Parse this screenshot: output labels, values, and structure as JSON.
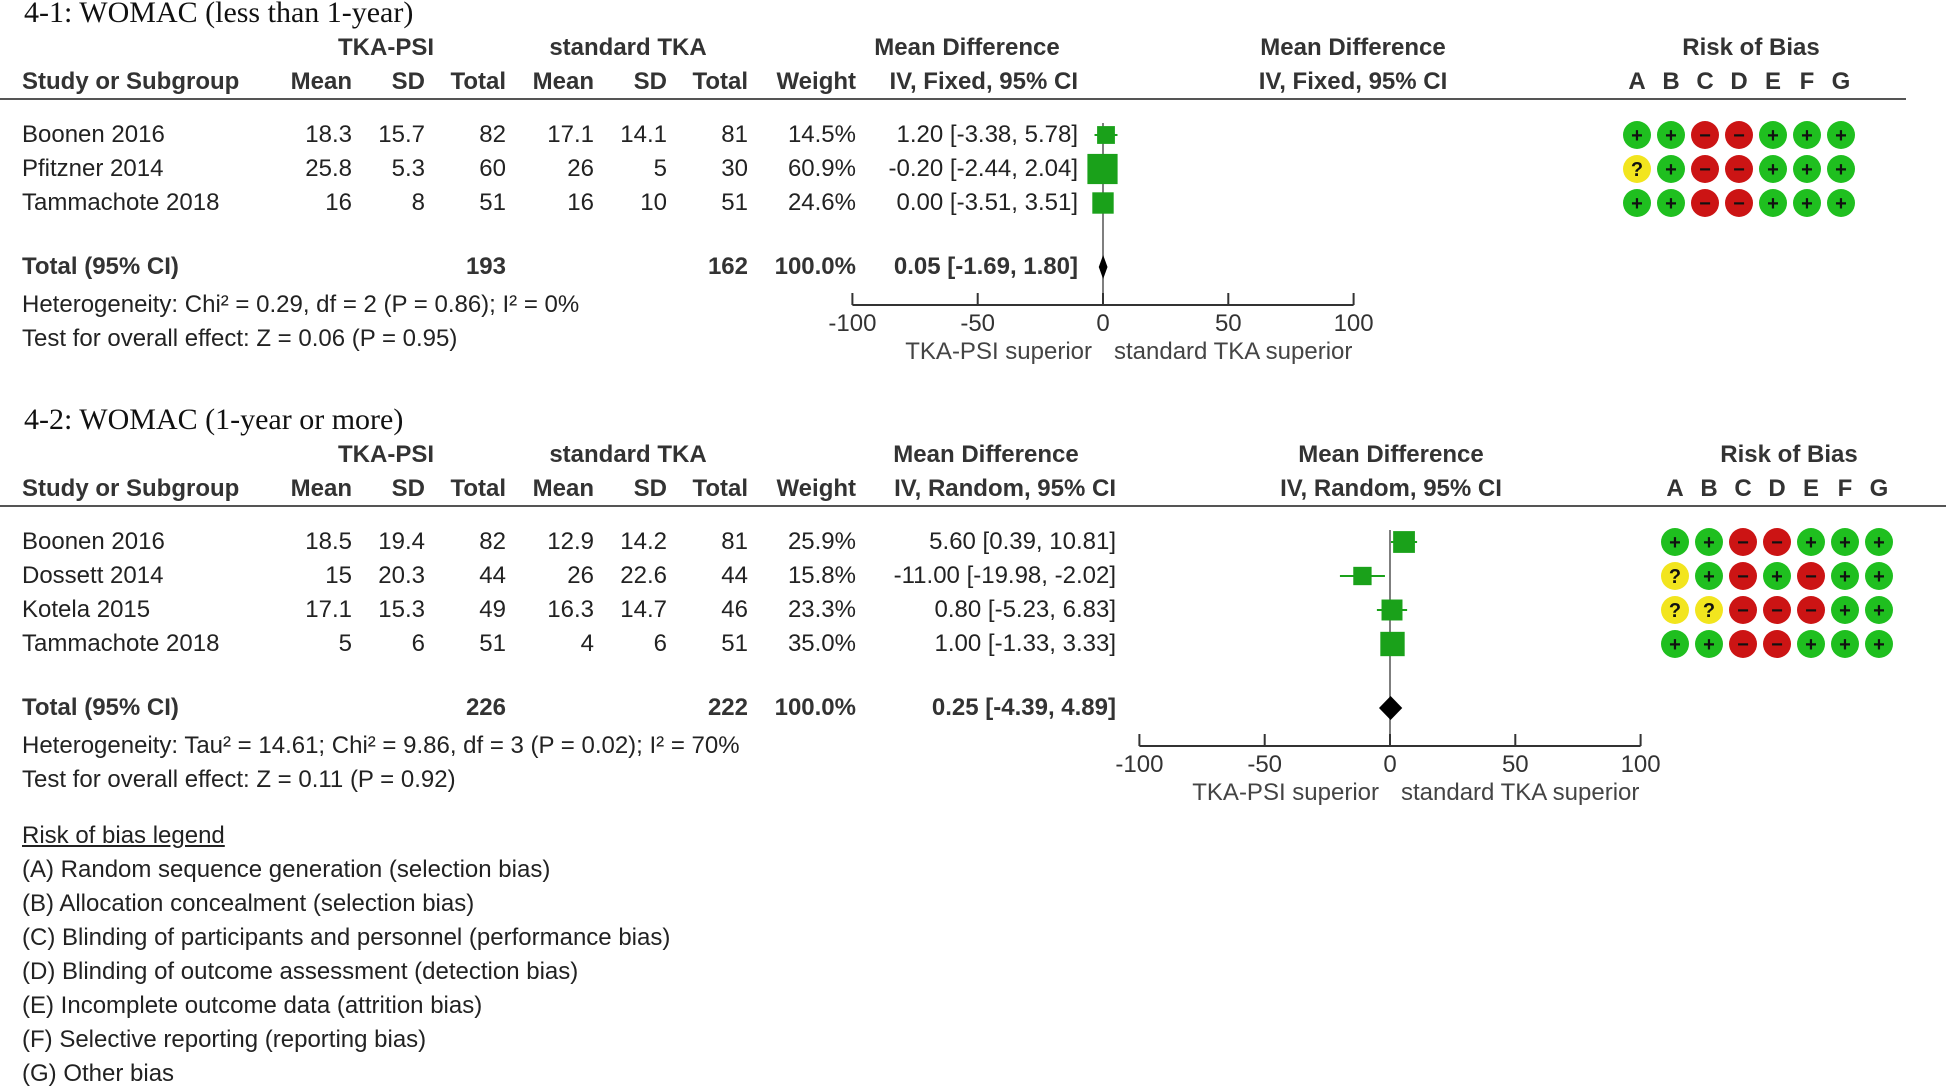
{
  "chart_data": [
    {
      "type": "forest",
      "title": "4-1: WOMAC (less than 1-year)",
      "group_headers": {
        "exp": "TKA-PSI",
        "ctl": "standard TKA"
      },
      "col_headers": {
        "study": "Study or Subgroup",
        "mean": "Mean",
        "sd": "SD",
        "total": "Total",
        "weight": "Weight",
        "md": "IV, Fixed, 95% CI"
      },
      "md_header": "Mean Difference",
      "plot_header": {
        "line1": "Mean Difference",
        "line2": "IV, Fixed, 95% CI"
      },
      "rob_header": "Risk of Bias",
      "rob_letters": [
        "A",
        "B",
        "C",
        "D",
        "E",
        "F",
        "G"
      ],
      "studies": [
        {
          "name": "Boonen 2016",
          "e_mean": "18.3",
          "e_sd": "15.7",
          "e_total": "82",
          "c_mean": "17.1",
          "c_sd": "14.1",
          "c_total": "81",
          "weight": "14.5%",
          "ci_text": "1.20 [-3.38, 5.78]",
          "md": 1.2,
          "lo": -3.38,
          "hi": 5.78,
          "w": 14.5,
          "rob": [
            "+",
            "+",
            "-",
            "-",
            "+",
            "+",
            "+"
          ]
        },
        {
          "name": "Pfitzner 2014",
          "e_mean": "25.8",
          "e_sd": "5.3",
          "e_total": "60",
          "c_mean": "26",
          "c_sd": "5",
          "c_total": "30",
          "weight": "60.9%",
          "ci_text": "-0.20 [-2.44, 2.04]",
          "md": -0.2,
          "lo": -2.44,
          "hi": 2.04,
          "w": 60.9,
          "rob": [
            "?",
            "+",
            "-",
            "-",
            "+",
            "+",
            "+"
          ]
        },
        {
          "name": "Tammachote 2018",
          "e_mean": "16",
          "e_sd": "8",
          "e_total": "51",
          "c_mean": "16",
          "c_sd": "10",
          "c_total": "51",
          "weight": "24.6%",
          "ci_text": "0.00 [-3.51, 3.51]",
          "md": 0.0,
          "lo": -3.51,
          "hi": 3.51,
          "w": 24.6,
          "rob": [
            "+",
            "+",
            "-",
            "-",
            "+",
            "+",
            "+"
          ]
        }
      ],
      "total": {
        "label": "Total (95% CI)",
        "e_total": "193",
        "c_total": "162",
        "weight": "100.0%",
        "ci_text": "0.05 [-1.69, 1.80]",
        "md": 0.05,
        "lo": -1.69,
        "hi": 1.8
      },
      "heterogeneity": "Heterogeneity: Chi² = 0.29, df = 2 (P = 0.86); I² = 0%",
      "overall": "Test for overall effect: Z = 0.06 (P = 0.95)",
      "axis": {
        "min": -100,
        "max": 100,
        "ticks": [
          -100,
          -50,
          0,
          50,
          100
        ],
        "tick_labels": [
          "-100",
          "-50",
          "0",
          "50",
          "100"
        ],
        "left_label": "TKA-PSI superior",
        "right_label": "standard TKA superior"
      }
    },
    {
      "type": "forest",
      "title": "4-2: WOMAC (1-year or more)",
      "group_headers": {
        "exp": "TKA-PSI",
        "ctl": "standard TKA"
      },
      "col_headers": {
        "study": "Study or Subgroup",
        "mean": "Mean",
        "sd": "SD",
        "total": "Total",
        "weight": "Weight",
        "md": "IV, Random, 95% CI"
      },
      "md_header": "Mean Difference",
      "plot_header": {
        "line1": "Mean Difference",
        "line2": "IV, Random, 95% CI"
      },
      "rob_header": "Risk of Bias",
      "rob_letters": [
        "A",
        "B",
        "C",
        "D",
        "E",
        "F",
        "G"
      ],
      "studies": [
        {
          "name": "Boonen 2016",
          "e_mean": "18.5",
          "e_sd": "19.4",
          "e_total": "82",
          "c_mean": "12.9",
          "c_sd": "14.2",
          "c_total": "81",
          "weight": "25.9%",
          "ci_text": "5.60 [0.39, 10.81]",
          "md": 5.6,
          "lo": 0.39,
          "hi": 10.81,
          "w": 25.9,
          "rob": [
            "+",
            "+",
            "-",
            "-",
            "+",
            "+",
            "+"
          ]
        },
        {
          "name": "Dossett 2014",
          "e_mean": "15",
          "e_sd": "20.3",
          "e_total": "44",
          "c_mean": "26",
          "c_sd": "22.6",
          "c_total": "44",
          "weight": "15.8%",
          "ci_text": "-11.00 [-19.98, -2.02]",
          "md": -11.0,
          "lo": -19.98,
          "hi": -2.02,
          "w": 15.8,
          "rob": [
            "?",
            "+",
            "-",
            "+",
            "-",
            "+",
            "+"
          ]
        },
        {
          "name": "Kotela 2015",
          "e_mean": "17.1",
          "e_sd": "15.3",
          "e_total": "49",
          "c_mean": "16.3",
          "c_sd": "14.7",
          "c_total": "46",
          "weight": "23.3%",
          "ci_text": "0.80 [-5.23, 6.83]",
          "md": 0.8,
          "lo": -5.23,
          "hi": 6.83,
          "w": 23.3,
          "rob": [
            "?",
            "?",
            "-",
            "-",
            "-",
            "+",
            "+"
          ]
        },
        {
          "name": "Tammachote 2018",
          "e_mean": "5",
          "e_sd": "6",
          "e_total": "51",
          "c_mean": "4",
          "c_sd": "6",
          "c_total": "51",
          "weight": "35.0%",
          "ci_text": "1.00 [-1.33, 3.33]",
          "md": 1.0,
          "lo": -1.33,
          "hi": 3.33,
          "w": 35.0,
          "rob": [
            "+",
            "+",
            "-",
            "-",
            "+",
            "+",
            "+"
          ]
        }
      ],
      "total": {
        "label": "Total (95% CI)",
        "e_total": "226",
        "c_total": "222",
        "weight": "100.0%",
        "ci_text": "0.25 [-4.39, 4.89]",
        "md": 0.25,
        "lo": -4.39,
        "hi": 4.89
      },
      "heterogeneity": "Heterogeneity: Tau² = 14.61; Chi² = 9.86, df = 3 (P = 0.02); I² = 70%",
      "overall": "Test for overall effect: Z = 0.11 (P = 0.92)",
      "axis": {
        "min": -100,
        "max": 100,
        "ticks": [
          -100,
          -50,
          0,
          50,
          100
        ],
        "tick_labels": [
          "-100",
          "-50",
          "0",
          "50",
          "100"
        ],
        "left_label": "TKA-PSI superior",
        "right_label": "standard TKA superior"
      }
    }
  ],
  "legend": {
    "title": "Risk of bias legend",
    "items": [
      {
        "key": "(A)",
        "text": "Random sequence generation (selection bias)"
      },
      {
        "key": "(B)",
        "text": "Allocation concealment (selection bias)"
      },
      {
        "key": "(C)",
        "text": "Blinding of participants and personnel (performance bias)"
      },
      {
        "key": "(D)",
        "text": "Blinding of outcome assessment (detection bias)"
      },
      {
        "key": "(E)",
        "text": "Incomplete outcome data (attrition bias)"
      },
      {
        "key": "(F)",
        "text": "Selective reporting (reporting bias)"
      },
      {
        "key": "(G)",
        "text": "Other bias"
      }
    ]
  },
  "colors": {
    "low": "#1fbf1f",
    "high": "#cc1414",
    "unclear": "#f2e51e",
    "marker": "#1aa11a",
    "diamond": "#000000",
    "axis": "#333333"
  }
}
